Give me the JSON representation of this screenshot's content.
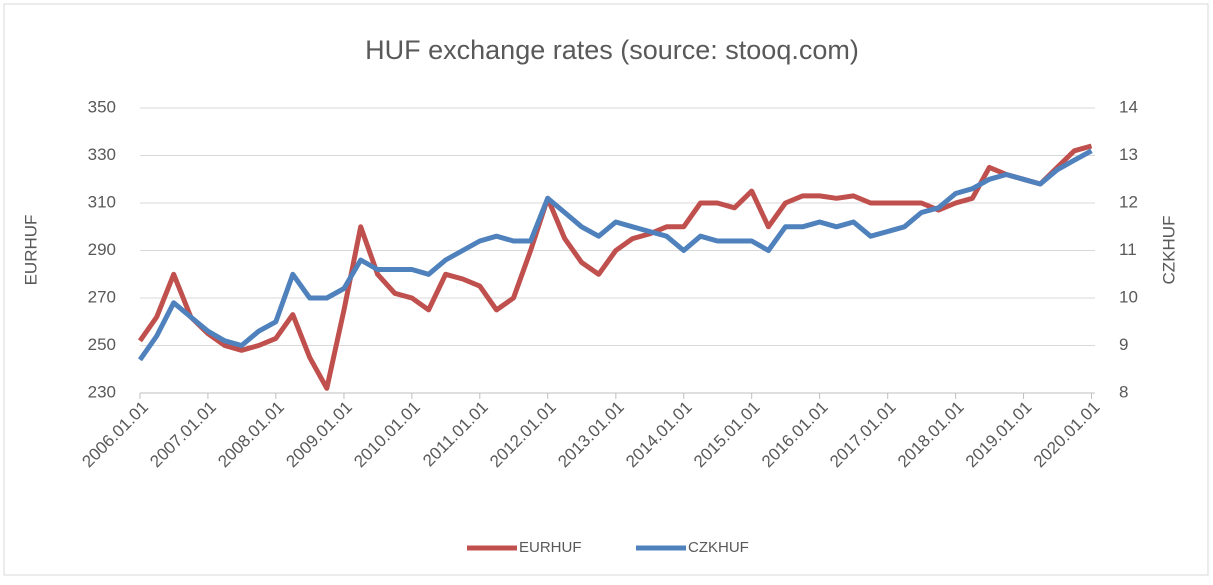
{
  "chart_data": {
    "type": "line",
    "title": "HUF exchange rates (source: stooq.com)",
    "y_label": "EURHUF",
    "y2_label": "CZKHUF",
    "x": [
      "2006.01.01",
      "2006.04.01",
      "2006.07.01",
      "2006.10.01",
      "2007.01.01",
      "2007.04.01",
      "2007.07.01",
      "2007.10.01",
      "2008.01.01",
      "2008.04.01",
      "2008.07.01",
      "2008.10.01",
      "2009.01.01",
      "2009.04.01",
      "2009.07.01",
      "2009.10.01",
      "2010.01.01",
      "2010.04.01",
      "2010.07.01",
      "2010.10.01",
      "2011.01.01",
      "2011.04.01",
      "2011.07.01",
      "2011.10.01",
      "2012.01.01",
      "2012.04.01",
      "2012.07.01",
      "2012.10.01",
      "2013.01.01",
      "2013.04.01",
      "2013.07.01",
      "2013.10.01",
      "2014.01.01",
      "2014.04.01",
      "2014.07.01",
      "2014.10.01",
      "2015.01.01",
      "2015.04.01",
      "2015.07.01",
      "2015.10.01",
      "2016.01.01",
      "2016.04.01",
      "2016.07.01",
      "2016.10.01",
      "2017.01.01",
      "2017.04.01",
      "2017.07.01",
      "2017.10.01",
      "2018.01.01",
      "2018.04.01",
      "2018.07.01",
      "2018.10.01",
      "2019.01.01",
      "2019.04.01",
      "2019.07.01",
      "2019.10.01",
      "2020.01.01"
    ],
    "series": [
      {
        "name": "EURHUF",
        "color": "#c0504d",
        "axis": "y",
        "values": [
          252,
          262,
          280,
          262,
          255,
          250,
          248,
          250,
          253,
          263,
          245,
          232,
          265,
          300,
          280,
          272,
          270,
          265,
          280,
          278,
          275,
          265,
          270,
          290,
          312,
          295,
          285,
          280,
          290,
          295,
          297,
          300,
          300,
          310,
          310,
          308,
          315,
          300,
          310,
          313,
          313,
          312,
          313,
          310,
          310,
          310,
          310,
          307,
          310,
          312,
          325,
          322,
          320,
          318,
          325,
          332,
          334
        ]
      },
      {
        "name": "CZKHUF",
        "color": "#4f81bd",
        "axis": "y2",
        "values": [
          8.7,
          9.2,
          9.9,
          9.6,
          9.3,
          9.1,
          9.0,
          9.3,
          9.5,
          10.5,
          10.0,
          10.0,
          10.2,
          10.8,
          10.6,
          10.6,
          10.6,
          10.5,
          10.8,
          11.0,
          11.2,
          11.3,
          11.2,
          11.2,
          12.1,
          11.8,
          11.5,
          11.3,
          11.6,
          11.5,
          11.4,
          11.3,
          11.0,
          11.3,
          11.2,
          11.2,
          11.2,
          11.0,
          11.5,
          11.5,
          11.6,
          11.5,
          11.6,
          11.3,
          11.4,
          11.5,
          11.8,
          11.9,
          12.2,
          12.3,
          12.5,
          12.6,
          12.5,
          12.4,
          12.7,
          12.9,
          13.1
        ]
      }
    ],
    "xlim": [
      "2006.01.01",
      "2020.01.20"
    ],
    "xticks": [
      "2006.01.01",
      "2007.01.01",
      "2008.01.01",
      "2009.01.01",
      "2010.01.01",
      "2011.01.01",
      "2012.01.01",
      "2013.01.01",
      "2014.01.01",
      "2015.01.01",
      "2016.01.01",
      "2017.01.01",
      "2018.01.01",
      "2019.01.01",
      "2020.01.01"
    ],
    "ylim": [
      230,
      350
    ],
    "yticks": [
      230,
      250,
      270,
      290,
      310,
      330,
      350
    ],
    "y2lim": [
      8,
      14
    ],
    "y2ticks": [
      8,
      9,
      10,
      11,
      12,
      13,
      14
    ],
    "grid": true,
    "legend": "bottom"
  }
}
